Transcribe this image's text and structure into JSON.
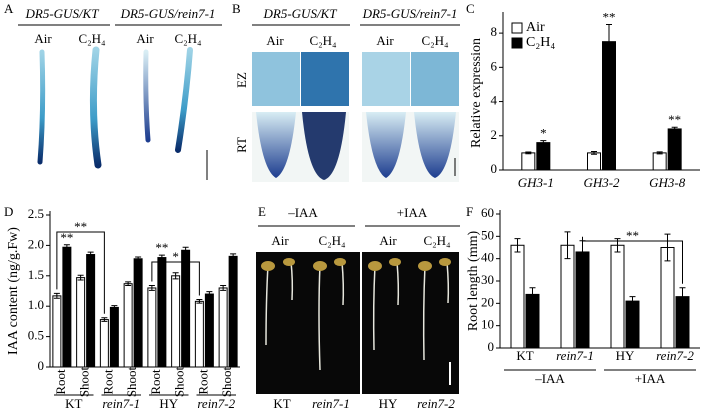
{
  "panels": {
    "letters": [
      "A",
      "B",
      "C",
      "D",
      "E",
      "F"
    ],
    "A": {
      "titles": [
        "DR5-GUS/KT",
        "DR5-GUS/rein7-1"
      ],
      "conditions": [
        "Air",
        "C₂H₄",
        "Air",
        "C₂H₄"
      ]
    },
    "B": {
      "titles": [
        "DR5-GUS/KT",
        "DR5-GUS/rein7-1"
      ],
      "conditions": [
        "Air",
        "C₂H₄",
        "Air",
        "C₂H₄"
      ],
      "rows": [
        "EZ",
        "RT"
      ]
    },
    "E": {
      "titles": [
        "–IAA",
        "+IAA"
      ],
      "conditions": [
        "Air",
        "C₂H₄",
        "Air",
        "C₂H₄"
      ],
      "genotypes": [
        "KT",
        "rein7-1",
        "HY",
        "rein7-2"
      ]
    }
  },
  "chart_data": [
    {
      "type": "bar",
      "ylabel": "Relative expression",
      "categories": [
        "GH3-1",
        "GH3-2",
        "GH3-8"
      ],
      "series": [
        {
          "name": "Air",
          "color": "#ffffff",
          "values": [
            1,
            1,
            1
          ],
          "errors": [
            0.05,
            0.08,
            0.06
          ]
        },
        {
          "name": "C₂H₄",
          "color": "#000000",
          "values": [
            1.6,
            7.5,
            2.4
          ],
          "errors": [
            0.12,
            1.0,
            0.1
          ]
        }
      ],
      "ylim": [
        0,
        9
      ],
      "yticks": [
        0,
        2,
        4,
        6,
        8
      ],
      "annotations": [
        "*",
        "**",
        "**"
      ],
      "legend": "upper left"
    },
    {
      "type": "bar",
      "ylabel": "IAA content (ng/g.Fw)",
      "categories": [
        "Root",
        "Shoot",
        "Root",
        "Shoot",
        "Root",
        "Shoot",
        "Root",
        "Shoot"
      ],
      "groups": [
        "KT",
        "rein7-1",
        "HY",
        "rein7-2"
      ],
      "series": [
        {
          "name": "Air",
          "color": "#ffffff",
          "values": [
            1.17,
            1.47,
            0.78,
            1.37,
            1.3,
            1.5,
            1.08,
            1.3
          ],
          "errors": [
            0.04,
            0.04,
            0.03,
            0.03,
            0.04,
            0.05,
            0.03,
            0.04
          ]
        },
        {
          "name": "C₂H₄",
          "color": "#000000",
          "values": [
            1.97,
            1.85,
            0.98,
            1.78,
            1.8,
            1.92,
            1.2,
            1.82
          ],
          "errors": [
            0.04,
            0.04,
            0.03,
            0.03,
            0.04,
            0.05,
            0.04,
            0.04
          ]
        }
      ],
      "ylim": [
        0,
        2.5
      ],
      "yticks": [
        0,
        0.5,
        {
          "value": 1,
          "label": "1.0"
        },
        1.5,
        {
          "value": 2,
          "label": "2.0"
        },
        2.5
      ],
      "annotations": [
        "**",
        "**",
        "**",
        "*"
      ]
    },
    {
      "type": "bar",
      "ylabel": "Root length (mm)",
      "categories": [
        "KT",
        "rein7-1",
        "HY",
        "rein7-2"
      ],
      "groups": [
        "–IAA",
        "+IAA"
      ],
      "series": [
        {
          "name": "Air",
          "color": "#ffffff",
          "values": [
            46,
            46,
            46,
            45
          ],
          "errors": [
            3,
            6,
            3,
            6
          ]
        },
        {
          "name": "C₂H₄",
          "color": "#000000",
          "values": [
            24,
            43,
            21,
            23
          ],
          "errors": [
            3,
            5,
            2,
            4
          ]
        }
      ],
      "ylim": [
        0,
        60
      ],
      "yticks": [
        0,
        10,
        20,
        30,
        40,
        50,
        60
      ],
      "annotations": [
        "**"
      ]
    }
  ]
}
